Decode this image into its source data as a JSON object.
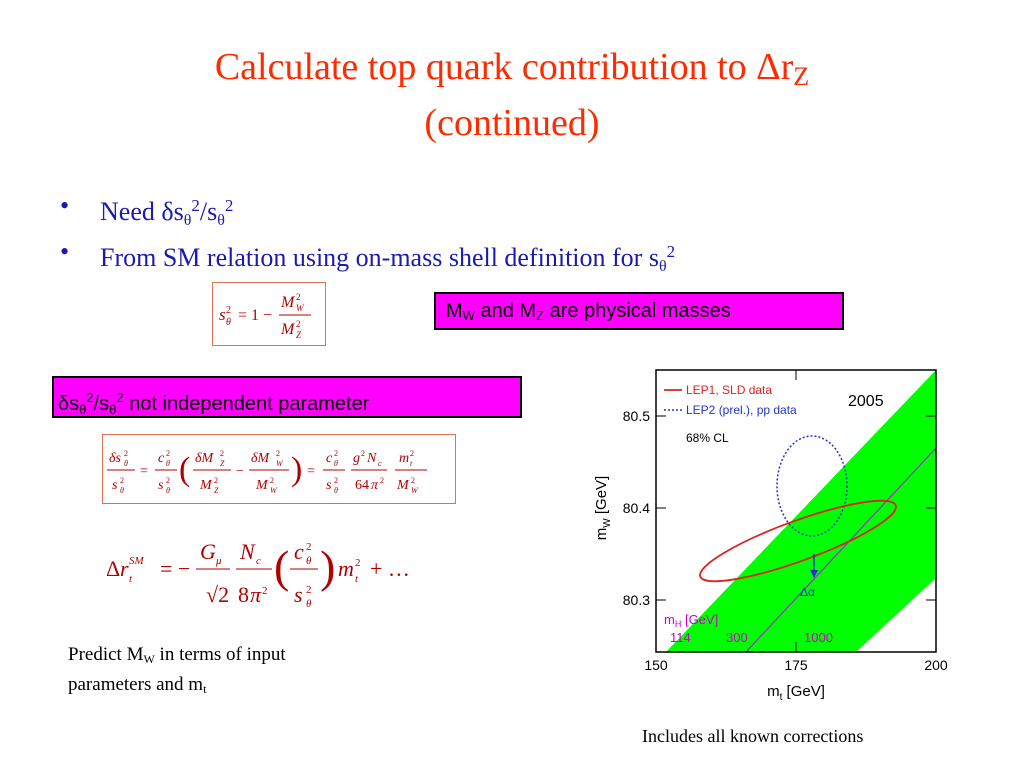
{
  "title": {
    "line1": "Calculate top quark contribution to Δr",
    "line1_sub": "Z",
    "line2": "(continued)"
  },
  "bullets": [
    {
      "marker": "•",
      "prefix": "Need δs",
      "sub1": "θ",
      "sup1": "2",
      "mid": "/s",
      "sub2": "θ",
      "sup2": "2"
    },
    {
      "marker": "•",
      "prefix": "From SM relation using on-mass shell definition for s",
      "sub1": "θ",
      "sup1": "2"
    }
  ],
  "callouts": {
    "mw_mz": {
      "a": "M",
      "a_sub": "W",
      "b": " and M",
      "b_sub": "Z",
      "c": " are physical masses"
    },
    "ds": {
      "a": "δs",
      "a_sub": "θ",
      "a_sup": "2",
      "b": "/s",
      "b_sub": "θ",
      "b_sup": "2",
      "c": " not independent parameter"
    }
  },
  "predict": {
    "line1_a": "Predict M",
    "line1_sub": "W",
    "line1_b": " in terms of input",
    "line2_a": "parameters and m",
    "line2_sub": "t"
  },
  "caption": "Includes all known corrections",
  "plot": {
    "year": "2005",
    "legend": {
      "lep1": "LEP1, SLD data",
      "lep2": "LEP2 (prel.), pp data",
      "cl": "68% CL"
    },
    "higgs_label": "m",
    "higgs_label_sub": "H",
    "higgs_label_unit": " [GeV]",
    "higgs_masses": [
      "114",
      "300",
      "1000"
    ],
    "delta_alpha": "Δα",
    "xlabel_a": "m",
    "xlabel_sub": "t",
    "xlabel_b": "  [GeV]",
    "ylabel_a": "m",
    "ylabel_sub": "W",
    "ylabel_b": "  [GeV]",
    "xticks": [
      "150",
      "175",
      "200"
    ],
    "yticks": [
      "80.3",
      "80.4",
      "80.5"
    ],
    "colors": {
      "band": "#00ff00",
      "lep1": "#dd2222",
      "lep2": "#2233cc",
      "mh": "#cc00cc"
    }
  }
}
